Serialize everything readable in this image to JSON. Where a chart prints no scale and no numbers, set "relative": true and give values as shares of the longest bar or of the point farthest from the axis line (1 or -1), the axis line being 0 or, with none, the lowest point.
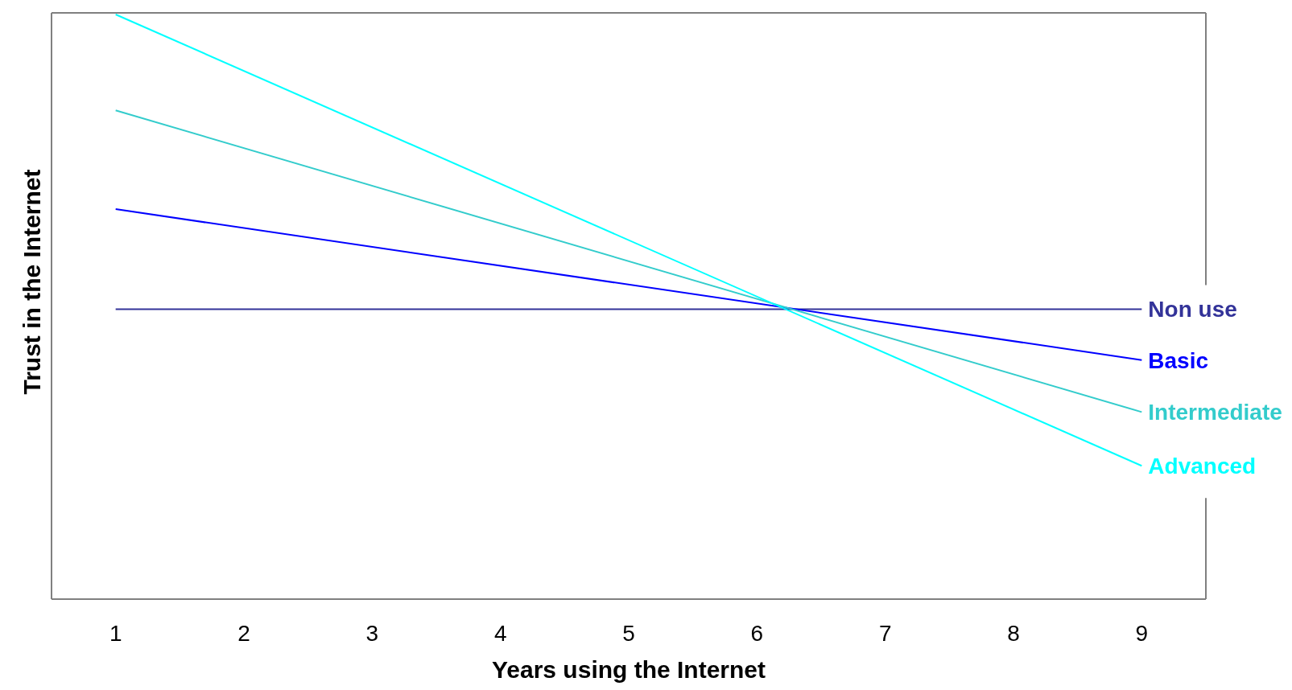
{
  "chart_data": {
    "type": "line",
    "xlabel": "Years using the Internet",
    "ylabel": "Trust in the Internet",
    "relative": true,
    "xlim": [
      0.5,
      9.5
    ],
    "xticks": [
      1,
      2,
      3,
      4,
      5,
      6,
      7,
      8,
      9
    ],
    "marker": "none",
    "line_style": "solid",
    "grid": false,
    "x": [
      1,
      9
    ],
    "series": [
      {
        "name": "Non use",
        "color": "#333399",
        "values": [
          0.496,
          0.496
        ]
      },
      {
        "name": "Basic",
        "color": "#0000ff",
        "values": [
          0.667,
          0.409
        ]
      },
      {
        "name": "Intermediate",
        "color": "#33cccc",
        "values": [
          0.836,
          0.32
        ]
      },
      {
        "name": "Advanced",
        "color": "#00ffff",
        "values": [
          1,
          0.228
        ]
      }
    ]
  }
}
